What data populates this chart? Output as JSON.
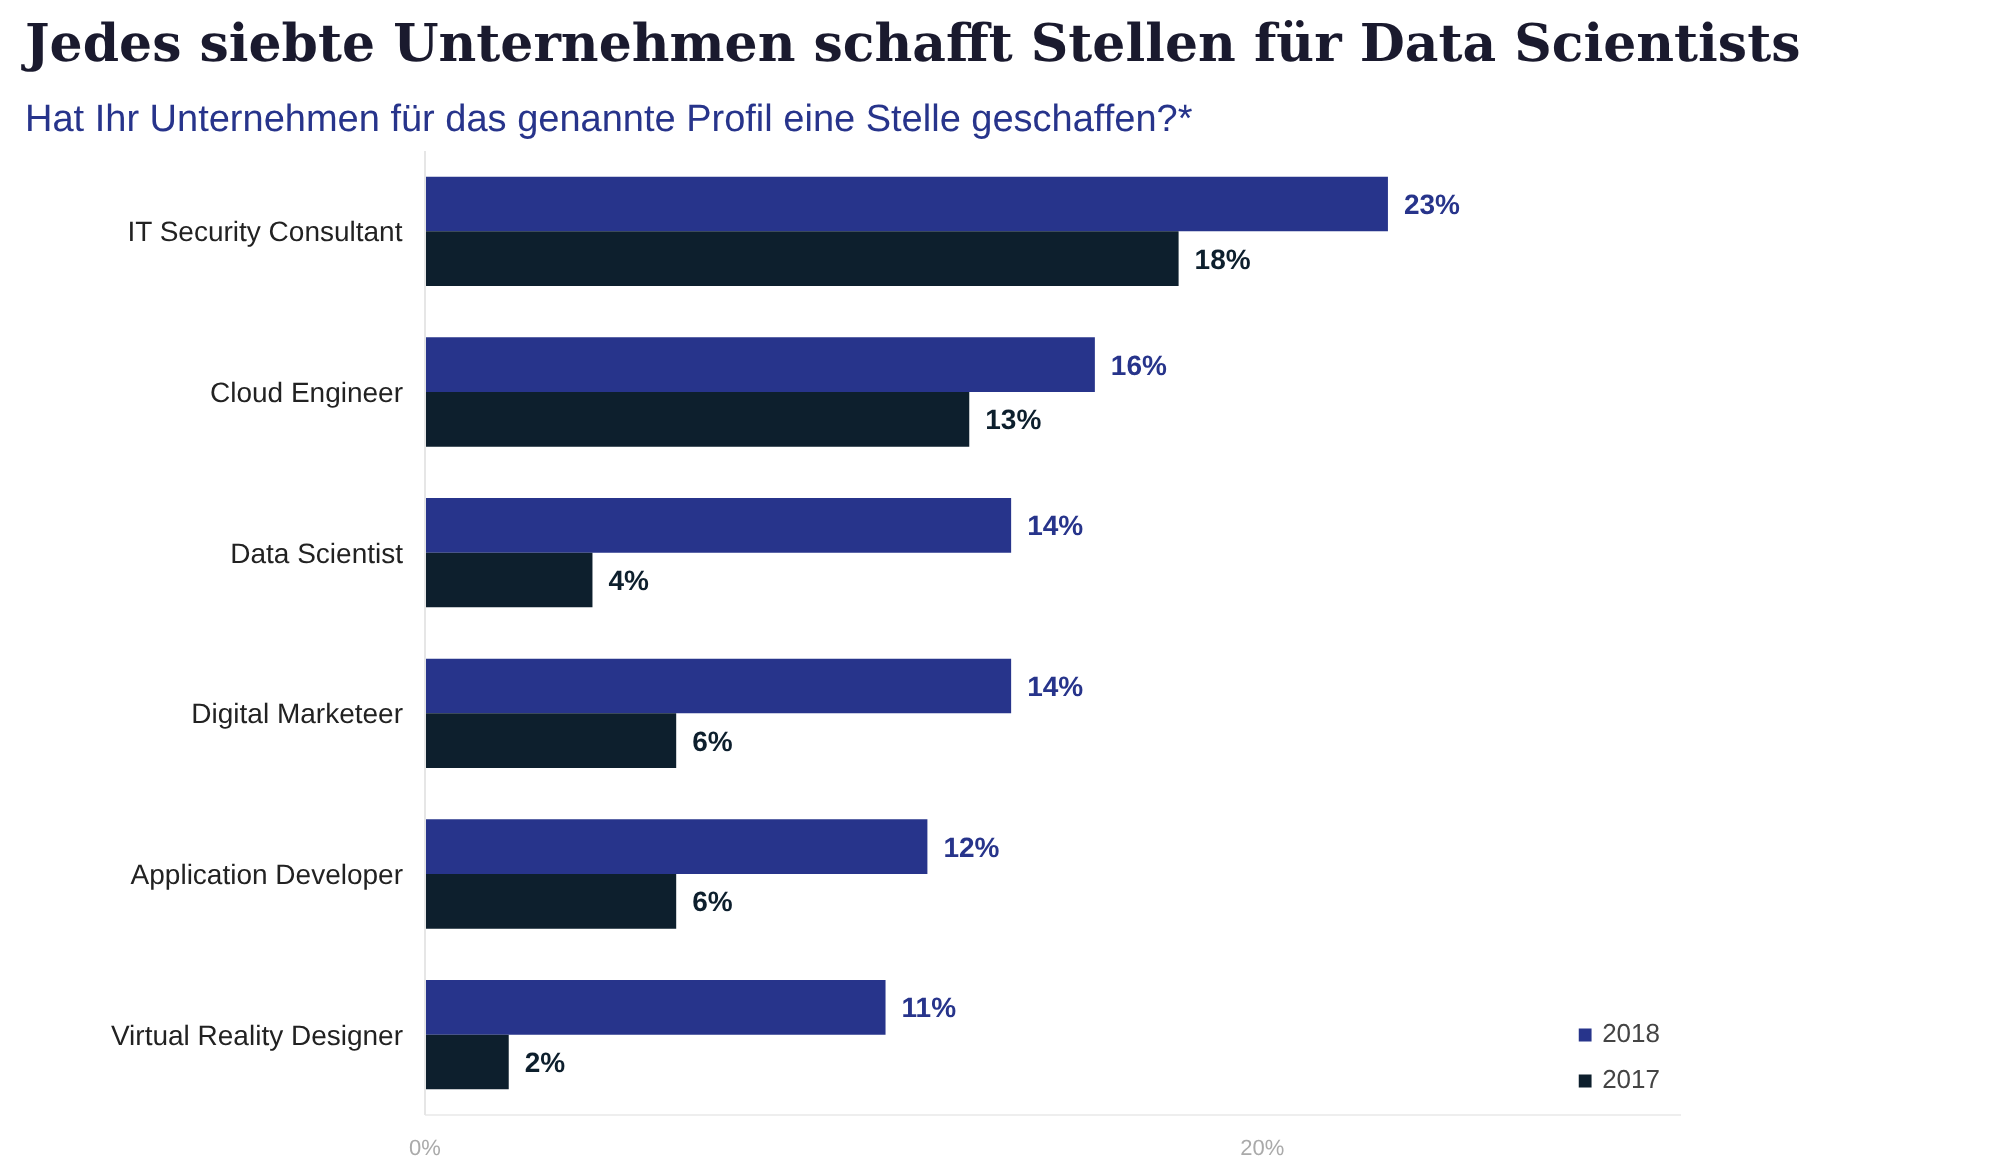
{
  "chart_data": {
    "type": "bar",
    "orientation": "horizontal",
    "title": "Jedes siebte Unternehmen schafft Stellen für Data Scientists",
    "subtitle": "Hat Ihr Unternehmen für das genannte Profil eine Stelle geschaffen?*",
    "categories": [
      "IT Security Consultant",
      "Cloud Engineer",
      "Data Scientist",
      "Digital Marketeer",
      "Application Developer",
      "Virtual Reality Designer"
    ],
    "series": [
      {
        "name": "2018",
        "color": "#27348b",
        "values": [
          23,
          16,
          14,
          14,
          12,
          11
        ],
        "value_labels": [
          "23%",
          "16%",
          "14%",
          "14%",
          "12%",
          "11%"
        ]
      },
      {
        "name": "2017",
        "color": "#0d1f2d",
        "values": [
          18,
          13,
          4,
          6,
          6,
          2
        ],
        "value_labels": [
          "18%",
          "13%",
          "4%",
          "6%",
          "6%",
          "2%"
        ]
      }
    ],
    "xlim": [
      0,
      30
    ],
    "xticks": [
      {
        "value": 0,
        "label": "0%"
      },
      {
        "value": 20,
        "label": "20%"
      }
    ],
    "grid": false,
    "legend": "bottom right"
  }
}
